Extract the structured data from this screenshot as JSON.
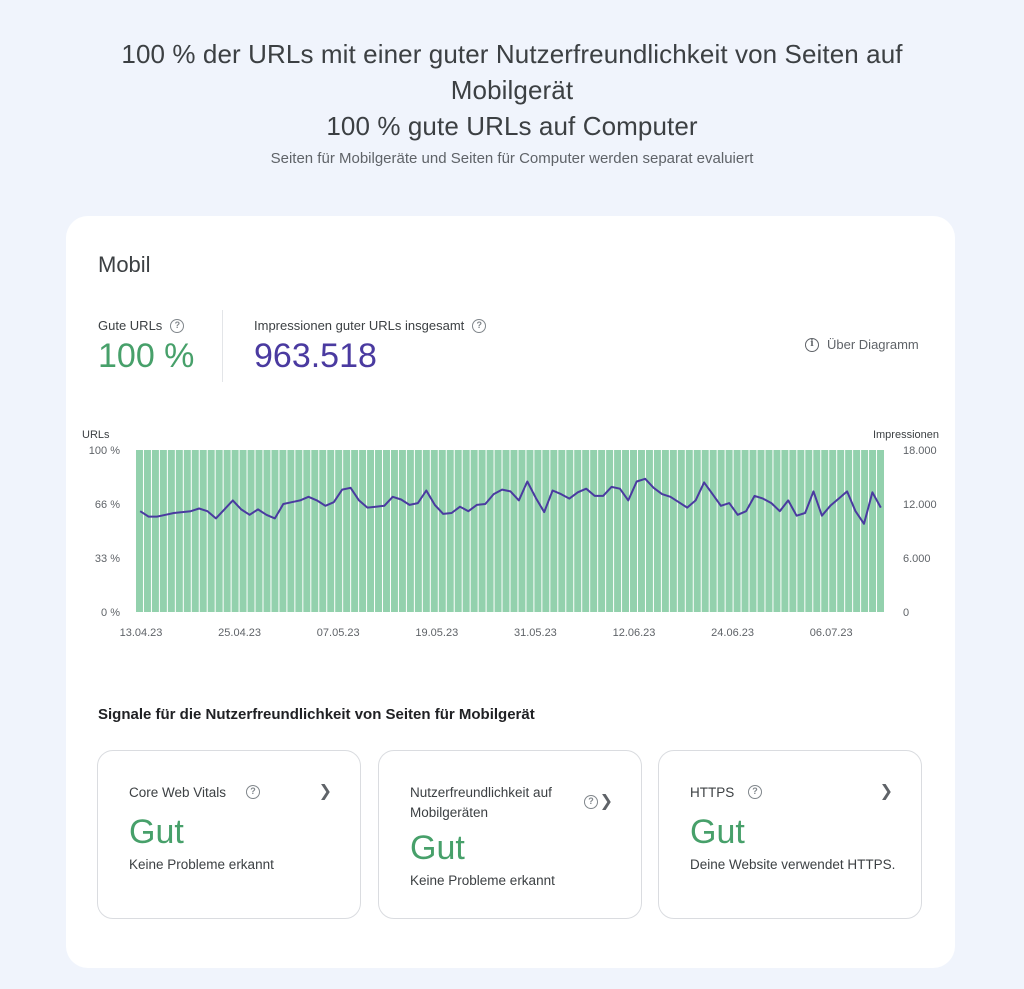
{
  "header": {
    "title_line1": "100 % der URLs mit einer guter Nutzerfreundlichkeit von Seiten auf",
    "title_line2": "Mobilgerät",
    "title_line3": "100 % gute URLs auf Computer",
    "subtitle": "Seiten für Mobilgeräte und Seiten für Computer werden separat evaluiert"
  },
  "card": {
    "title": "Mobil",
    "metrics": {
      "good_urls_label": "Gute URLs",
      "good_urls_value": "100 %",
      "impressions_label": "Impressionen guter URLs insgesamt",
      "impressions_value": "963.518"
    },
    "about_label": "Über Diagramm",
    "section_title": "Signale für die Nutzerfreundlichkeit von Seiten für Mobilgerät",
    "signals": [
      {
        "name": "Core Web Vitals",
        "status": "Gut",
        "description": "Keine Probleme erkannt"
      },
      {
        "name_line1": "Nutzerfreundlichkeit auf",
        "name_line2": "Mobilgeräten",
        "status": "Gut",
        "description": "Keine Probleme erkannt"
      },
      {
        "name": "HTTPS",
        "status": "Gut",
        "description": "Deine Website verwendet HTTPS."
      }
    ]
  },
  "colors": {
    "bar": "#93d1ad",
    "line": "#4a3aa0",
    "good": "#47a06a"
  },
  "chart_data": {
    "type": "bar",
    "left_axis_label": "URLs",
    "right_axis_label": "Impressionen",
    "left_ticks": [
      "0 %",
      "33 %",
      "66 %",
      "100 %"
    ],
    "right_ticks": [
      "0",
      "6.000",
      "12.000",
      "18.000"
    ],
    "x_ticks": [
      "13.04.23",
      "25.04.23",
      "07.05.23",
      "19.05.23",
      "31.05.23",
      "12.06.23",
      "24.06.23",
      "06.07.23"
    ],
    "ylim_left": [
      0,
      100
    ],
    "ylim_right": [
      0,
      18000
    ],
    "series": [
      {
        "axis": "left",
        "type": "bar",
        "values": [
          100,
          100,
          100,
          100,
          100,
          100,
          100,
          100,
          100,
          100,
          100,
          100,
          100,
          100,
          100,
          100,
          100,
          100,
          100,
          100,
          100,
          100,
          100,
          100,
          100,
          100,
          100,
          100,
          100,
          100,
          100,
          100,
          100,
          100,
          100,
          100,
          100,
          100,
          100,
          100,
          100,
          100,
          100,
          100,
          100,
          100,
          100,
          100,
          100,
          100,
          100,
          100,
          100,
          100,
          100,
          100,
          100,
          100,
          100,
          100,
          100,
          100,
          100,
          100,
          100,
          100,
          100,
          100,
          100,
          100,
          100,
          100,
          100,
          100,
          100,
          100,
          100,
          100,
          100,
          100,
          100,
          100,
          100,
          100,
          100,
          100,
          100,
          100,
          100,
          100,
          100,
          100,
          100,
          100
        ]
      },
      {
        "axis": "right",
        "type": "line",
        "values": [
          11200,
          10600,
          10600,
          10800,
          11000,
          11100,
          11200,
          11500,
          11200,
          10400,
          11400,
          12400,
          11400,
          10800,
          11400,
          10800,
          10400,
          12000,
          12200,
          12400,
          12800,
          12400,
          11800,
          12200,
          13600,
          13800,
          12400,
          11600,
          11700,
          11800,
          12800,
          12500,
          11900,
          12100,
          13500,
          11900,
          10900,
          11000,
          11700,
          11200,
          11900,
          12000,
          13100,
          13600,
          13400,
          12400,
          14500,
          12700,
          11100,
          13500,
          13100,
          12600,
          13300,
          13700,
          12900,
          12900,
          13900,
          13700,
          12400,
          14500,
          14800,
          13800,
          13100,
          12800,
          12200,
          11600,
          12400,
          14400,
          13100,
          11800,
          12100,
          10800,
          11200,
          12900,
          12600,
          12100,
          11200,
          12400,
          10700,
          11000,
          13400,
          10700,
          11800,
          12600,
          13400,
          11200,
          9800,
          13300,
          11600
        ]
      }
    ]
  }
}
